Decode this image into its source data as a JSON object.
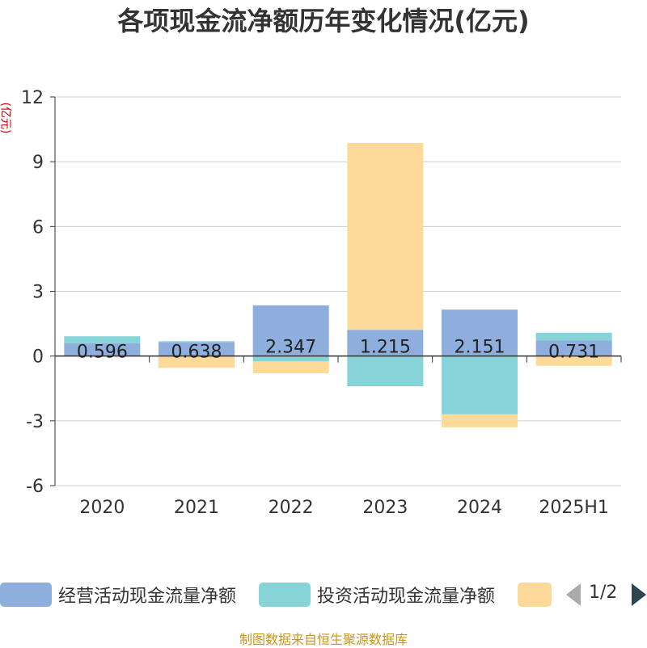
{
  "chart_data": {
    "type": "bar",
    "stacked": true,
    "title": "各项现金流净额历年变化情况(亿元)",
    "ylabel": "(亿元)",
    "xlabel": "",
    "categories": [
      "2020",
      "2021",
      "2022",
      "2023",
      "2024",
      "2025H1"
    ],
    "ylim": [
      -6,
      12
    ],
    "yticks": [
      12,
      9,
      6,
      3,
      0,
      -3,
      -6
    ],
    "grid": true,
    "legend_position": "bottom",
    "series": [
      {
        "name": "经营活动现金流量净额",
        "color": "#8eaedd",
        "values": [
          0.596,
          0.638,
          2.347,
          1.215,
          2.151,
          0.731
        ],
        "labels": [
          "0.596",
          "0.638",
          "2.347",
          "1.215",
          "2.151",
          "0.731"
        ]
      },
      {
        "name": "投资活动现金流量净额",
        "color": "#86d4d8",
        "values": [
          0.32,
          0.05,
          -0.25,
          -1.4,
          -2.7,
          0.35
        ]
      },
      {
        "name": "",
        "color": "#fdd99a",
        "values": [
          0.0,
          -0.55,
          -0.55,
          8.65,
          -0.6,
          -0.45
        ]
      }
    ]
  },
  "legend": {
    "page": "1/2"
  },
  "source": "制图数据来自恒生聚源数据库"
}
